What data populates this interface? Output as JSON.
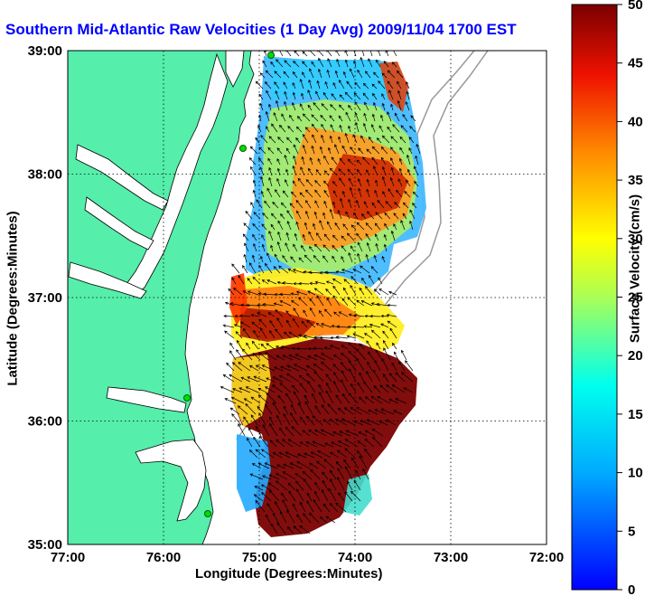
{
  "map": {
    "title": "Southern Mid-Atlantic Raw Velocities (1 Day Avg) 2009/11/04 1700 EST",
    "xlabel": "Longitude (Degrees:Minutes)",
    "ylabel": "Latitude (Degrees:Minutes)",
    "xticks": [
      "77:00",
      "76:00",
      "75:00",
      "74:00",
      "73:00",
      "72:00"
    ],
    "yticks": [
      "39:00",
      "38:00",
      "37:00",
      "36:00",
      "35:00"
    ],
    "lon_range": [
      -77,
      -72
    ],
    "lat_range": [
      35,
      39
    ],
    "land_color": "#55eeaa",
    "grid": "dotted",
    "radar_sites": "green dots along the coast"
  },
  "colorbar": {
    "label": "Surface Velocity (cm/s)",
    "ticks": [
      "50",
      "45",
      "40",
      "35",
      "30",
      "25",
      "20",
      "15",
      "10",
      "5",
      "0"
    ],
    "min": 0,
    "max": 50,
    "colormap": "jet"
  }
}
